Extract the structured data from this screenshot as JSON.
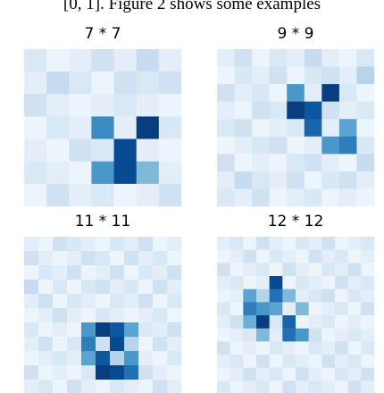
{
  "caption_fragment": "[0, 1]. Figure 2 shows some examples",
  "chart_data": [
    {
      "type": "heatmap",
      "title": "7 * 7",
      "colormap": "Blues",
      "values": [
        [
          0.15,
          0.05,
          0.1,
          0.2,
          0.1,
          0.25,
          0.1
        ],
        [
          0.1,
          0.25,
          0.15,
          0.05,
          0.2,
          0.15,
          0.2
        ],
        [
          0.2,
          0.1,
          0.05,
          0.1,
          0.15,
          0.1,
          0.05
        ],
        [
          0.05,
          0.15,
          0.1,
          0.65,
          0.1,
          0.95,
          0.15
        ],
        [
          0.1,
          0.05,
          0.2,
          0.15,
          0.9,
          0.1,
          0.05
        ],
        [
          0.15,
          0.1,
          0.05,
          0.6,
          0.9,
          0.45,
          0.1
        ],
        [
          0.05,
          0.2,
          0.1,
          0.15,
          0.05,
          0.1,
          0.2
        ]
      ]
    },
    {
      "type": "heatmap",
      "title": "9 * 9",
      "colormap": "Blues",
      "values": [
        [
          0.1,
          0.2,
          0.05,
          0.15,
          0.1,
          0.25,
          0.1,
          0.05,
          0.15
        ],
        [
          0.05,
          0.15,
          0.1,
          0.2,
          0.05,
          0.15,
          0.2,
          0.1,
          0.3
        ],
        [
          0.2,
          0.1,
          0.15,
          0.05,
          0.6,
          0.1,
          0.95,
          0.15,
          0.05
        ],
        [
          0.1,
          0.05,
          0.2,
          0.15,
          0.95,
          0.85,
          0.2,
          0.1,
          0.15
        ],
        [
          0.15,
          0.2,
          0.05,
          0.1,
          0.15,
          0.8,
          0.1,
          0.55,
          0.05
        ],
        [
          0.05,
          0.1,
          0.15,
          0.2,
          0.05,
          0.1,
          0.6,
          0.7,
          0.15
        ],
        [
          0.2,
          0.05,
          0.1,
          0.05,
          0.15,
          0.2,
          0.1,
          0.05,
          0.25
        ],
        [
          0.1,
          0.25,
          0.15,
          0.1,
          0.2,
          0.05,
          0.15,
          0.2,
          0.1
        ],
        [
          0.15,
          0.1,
          0.2,
          0.05,
          0.1,
          0.15,
          0.05,
          0.1,
          0.05
        ]
      ]
    },
    {
      "type": "heatmap",
      "title": "11 * 11",
      "colormap": "Blues",
      "values": [
        [
          0.1,
          0.05,
          0.2,
          0.15,
          0.1,
          0.05,
          0.15,
          0.1,
          0.2,
          0.05,
          0.1
        ],
        [
          0.2,
          0.1,
          0.05,
          0.1,
          0.2,
          0.15,
          0.05,
          0.2,
          0.1,
          0.15,
          0.05
        ],
        [
          0.05,
          0.15,
          0.1,
          0.2,
          0.05,
          0.1,
          0.2,
          0.05,
          0.15,
          0.1,
          0.2
        ],
        [
          0.25,
          0.05,
          0.15,
          0.05,
          0.15,
          0.2,
          0.1,
          0.15,
          0.05,
          0.2,
          0.1
        ],
        [
          0.1,
          0.2,
          0.05,
          0.15,
          0.1,
          0.05,
          0.15,
          0.1,
          0.2,
          0.05,
          0.15
        ],
        [
          0.05,
          0.1,
          0.2,
          0.1,
          0.05,
          0.15,
          0.1,
          0.05,
          0.1,
          0.15,
          0.05
        ],
        [
          0.15,
          0.05,
          0.1,
          0.05,
          0.6,
          0.95,
          0.85,
          0.55,
          0.15,
          0.1,
          0.2
        ],
        [
          0.1,
          0.2,
          0.05,
          0.15,
          0.7,
          0.2,
          0.9,
          0.3,
          0.05,
          0.2,
          0.1
        ],
        [
          0.05,
          0.1,
          0.15,
          0.1,
          0.55,
          0.85,
          0.3,
          0.6,
          0.1,
          0.05,
          0.15
        ],
        [
          0.2,
          0.05,
          0.1,
          0.05,
          0.15,
          0.95,
          0.9,
          0.75,
          0.2,
          0.1,
          0.05
        ],
        [
          0.1,
          0.15,
          0.05,
          0.2,
          0.1,
          0.05,
          0.15,
          0.1,
          0.05,
          0.2,
          0.1
        ]
      ]
    },
    {
      "type": "heatmap",
      "title": "12 * 12",
      "colormap": "Blues",
      "values": [
        [
          0.1,
          0.15,
          0.05,
          0.2,
          0.1,
          0.05,
          0.15,
          0.1,
          0.2,
          0.05,
          0.1,
          0.15
        ],
        [
          0.05,
          0.1,
          0.2,
          0.05,
          0.15,
          0.1,
          0.05,
          0.2,
          0.1,
          0.15,
          0.05,
          0.1
        ],
        [
          0.2,
          0.05,
          0.1,
          0.15,
          0.05,
          0.2,
          0.1,
          0.05,
          0.15,
          0.1,
          0.2,
          0.05
        ],
        [
          0.1,
          0.15,
          0.05,
          0.1,
          0.9,
          0.05,
          0.15,
          0.1,
          0.05,
          0.2,
          0.1,
          0.15
        ],
        [
          0.05,
          0.1,
          0.55,
          0.3,
          0.75,
          0.45,
          0.1,
          0.15,
          0.2,
          0.05,
          0.15,
          0.1
        ],
        [
          0.15,
          0.05,
          0.7,
          0.6,
          0.55,
          0.1,
          0.45,
          0.05,
          0.1,
          0.15,
          0.05,
          0.2
        ],
        [
          0.1,
          0.2,
          0.5,
          0.95,
          0.15,
          0.8,
          0.05,
          0.1,
          0.15,
          0.05,
          0.1,
          0.05
        ],
        [
          0.05,
          0.1,
          0.15,
          0.45,
          0.1,
          0.75,
          0.6,
          0.2,
          0.05,
          0.1,
          0.15,
          0.1
        ],
        [
          0.2,
          0.05,
          0.1,
          0.05,
          0.15,
          0.1,
          0.05,
          0.15,
          0.1,
          0.2,
          0.05,
          0.15
        ],
        [
          0.1,
          0.15,
          0.05,
          0.2,
          0.05,
          0.15,
          0.1,
          0.05,
          0.2,
          0.1,
          0.15,
          0.05
        ],
        [
          0.05,
          0.1,
          0.2,
          0.1,
          0.15,
          0.05,
          0.2,
          0.1,
          0.05,
          0.15,
          0.1,
          0.2
        ],
        [
          0.15,
          0.05,
          0.1,
          0.15,
          0.05,
          0.2,
          0.1,
          0.15,
          0.1,
          0.05,
          0.2,
          0.1
        ]
      ]
    }
  ]
}
